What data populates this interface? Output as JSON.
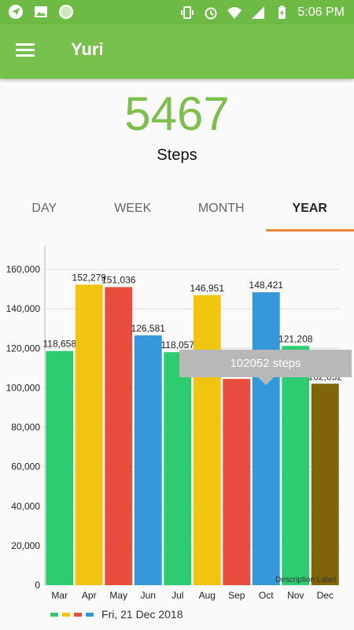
{
  "status_bar": {
    "time": "5:06 PM",
    "left_icons": [
      "navigation-icon",
      "image-icon",
      "circle-icon"
    ],
    "right_icons": [
      "vibrate-icon",
      "alarm-icon",
      "wifi-icon",
      "signal-icon",
      "battery-charging-icon"
    ]
  },
  "appbar": {
    "title": "Yuri",
    "menu_icon": "hamburger-menu-icon"
  },
  "steps": {
    "count": "5467",
    "label": "Steps"
  },
  "tabs": [
    {
      "label": "DAY",
      "active": false
    },
    {
      "label": "WEEK",
      "active": false
    },
    {
      "label": "MONTH",
      "active": false
    },
    {
      "label": "YEAR",
      "active": true
    }
  ],
  "chart_data": {
    "type": "bar",
    "categories": [
      "Mar",
      "Apr",
      "May",
      "Jun",
      "Jul",
      "Aug",
      "Sep",
      "Oct",
      "Nov",
      "Dec"
    ],
    "values": [
      118658,
      152279,
      151036,
      126581,
      118057,
      146951,
      104497,
      148421,
      121208,
      102052
    ],
    "value_labels": [
      "118,658",
      "152,279",
      "151,036",
      "126,581",
      "118,057",
      "146,951",
      "104,497",
      "148,421",
      "121,208",
      "102,052"
    ],
    "colors": [
      "#2ecc71",
      "#f1c40f",
      "#e74c3c",
      "#3498db",
      "#2ecc71",
      "#f1c40f",
      "#e74c3c",
      "#3498db",
      "#2ecc71",
      "#7f6508"
    ],
    "ylim": [
      0,
      172000
    ],
    "yticks": [
      0,
      20000,
      40000,
      60000,
      80000,
      100000,
      120000,
      140000,
      160000
    ],
    "ytick_labels": [
      "0",
      "20,000",
      "40,000",
      "60,000",
      "80,000",
      "100,000",
      "120,000",
      "140,000",
      "160,000"
    ],
    "grid": true,
    "legend_placement": "bottom-left",
    "legend_colors": [
      "#2ecc71",
      "#f1c40f",
      "#e74c3c",
      "#3498db"
    ],
    "legend_label": "Fri, 21 Dec 2018",
    "description_label": "Description Label",
    "tooltip": "102052 steps"
  }
}
